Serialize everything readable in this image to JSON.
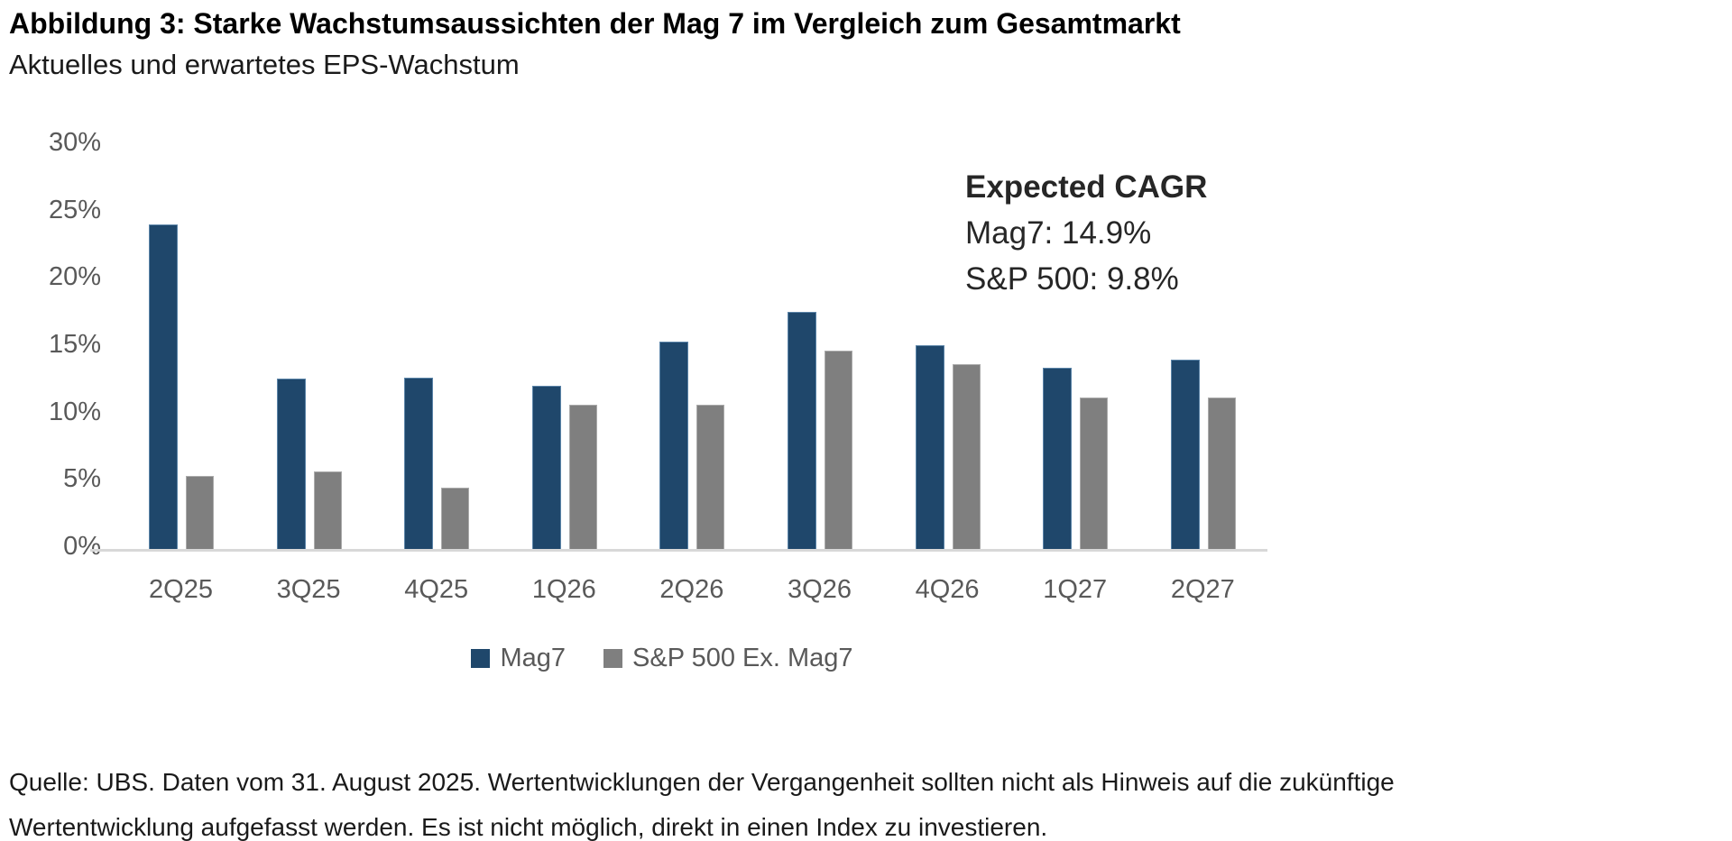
{
  "header": {
    "title": "Abbildung 3: Starke Wachstumsaussichten der Mag 7 im Vergleich zum Gesamtmarkt",
    "subtitle": "Aktuelles und erwartetes EPS-Wachstum"
  },
  "chart_data": {
    "type": "bar",
    "categories": [
      "2Q25",
      "3Q25",
      "4Q25",
      "1Q26",
      "2Q26",
      "3Q26",
      "4Q26",
      "1Q27",
      "2Q27"
    ],
    "series": [
      {
        "name": "Mag7",
        "color": "#1F476B",
        "edge_color": "#5b84a8",
        "values": [
          24.2,
          12.7,
          12.8,
          12.2,
          15.5,
          17.7,
          15.2,
          13.5,
          14.1
        ]
      },
      {
        "name": "S&P 500 Ex. Mag7",
        "color": "#7F7F7F",
        "edge_color": "#ababab",
        "values": [
          5.5,
          5.8,
          4.6,
          10.8,
          10.8,
          14.8,
          13.8,
          11.3,
          11.3
        ]
      }
    ],
    "title": "",
    "xlabel": "",
    "ylabel": "",
    "ylim": [
      0,
      30
    ],
    "yticks": [
      {
        "label": "0%",
        "value": 0
      },
      {
        "label": "5%",
        "value": 5
      },
      {
        "label": "10%",
        "value": 10
      },
      {
        "label": "15%",
        "value": 15
      },
      {
        "label": "20%",
        "value": 20
      },
      {
        "label": "25%",
        "value": 25
      },
      {
        "label": "30%",
        "value": 30
      }
    ],
    "grid": false,
    "legend_position": "bottom",
    "annotation": {
      "heading": "Expected CAGR",
      "lines": [
        "Mag7: 14.9%",
        "S&P 500: 9.8%"
      ]
    }
  },
  "footer": {
    "line1": "Quelle: UBS. Daten vom 31. August 2025. Wertentwicklungen der Vergangenheit sollten nicht als Hinweis auf die zukünftige",
    "line2": "Wertentwicklung aufgefasst werden. Es ist nicht möglich, direkt in einen Index zu investieren."
  },
  "colors": {
    "axis_line": "#d8d8d8",
    "tick_text": "#595959",
    "annotation_text": "#262626",
    "title_text": "#000000"
  }
}
